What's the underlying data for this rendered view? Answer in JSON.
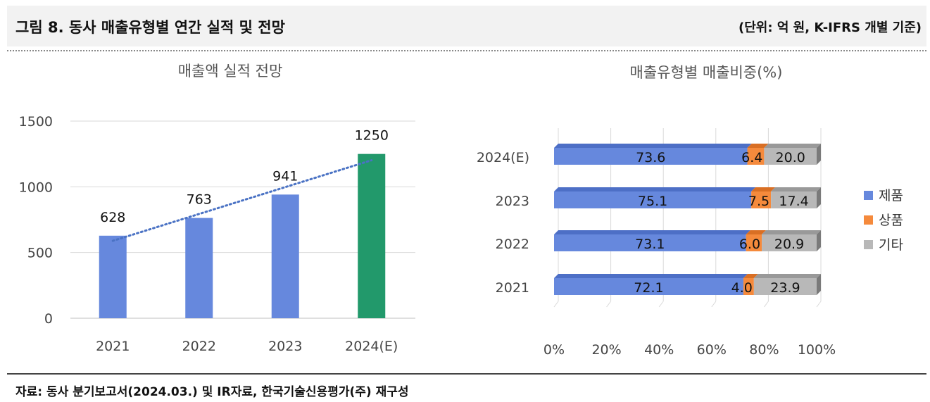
{
  "header": {
    "figure_title": "그림 8. 동사 매출유형별 연간 실적 및 전망",
    "unit_note": "(단위: 억 원, K-IFRS 개별 기준)"
  },
  "footer": {
    "source": "자료: 동사 분기보고서(2024.03.) 및 IR자료, 한국기술신용평가(주) 재구성"
  },
  "chart_data": [
    {
      "type": "bar",
      "title": "매출액 실적 전망",
      "categories": [
        "2021",
        "2022",
        "2023",
        "2024(E)"
      ],
      "values": [
        628,
        763,
        941,
        1250
      ],
      "ylim": [
        0,
        1500
      ],
      "yticks": [
        0,
        500,
        1000,
        1500
      ],
      "grid": true,
      "trendline": "linear, dotted",
      "colors": [
        "#6688dd",
        "#6688dd",
        "#6688dd",
        "#22996b"
      ],
      "trend_color": "#4a72c4"
    },
    {
      "type": "bar",
      "orientation": "horizontal",
      "stacked": "percent",
      "title": "매출유형별 매출비중(%)",
      "categories": [
        "2021",
        "2022",
        "2023",
        "2024(E)"
      ],
      "series": [
        {
          "name": "제품",
          "values": [
            72.1,
            73.1,
            75.1,
            73.6
          ],
          "color": "#6688dd"
        },
        {
          "name": "상품",
          "values": [
            4.0,
            6.0,
            7.5,
            6.4
          ],
          "color": "#f58a3c"
        },
        {
          "name": "기타",
          "values": [
            23.9,
            20.9,
            17.4,
            20.0
          ],
          "color": "#b8b8b8"
        }
      ],
      "xticks": [
        "0%",
        "20%",
        "40%",
        "60%",
        "80%",
        "100%"
      ],
      "legend": "right",
      "grid": true
    }
  ]
}
